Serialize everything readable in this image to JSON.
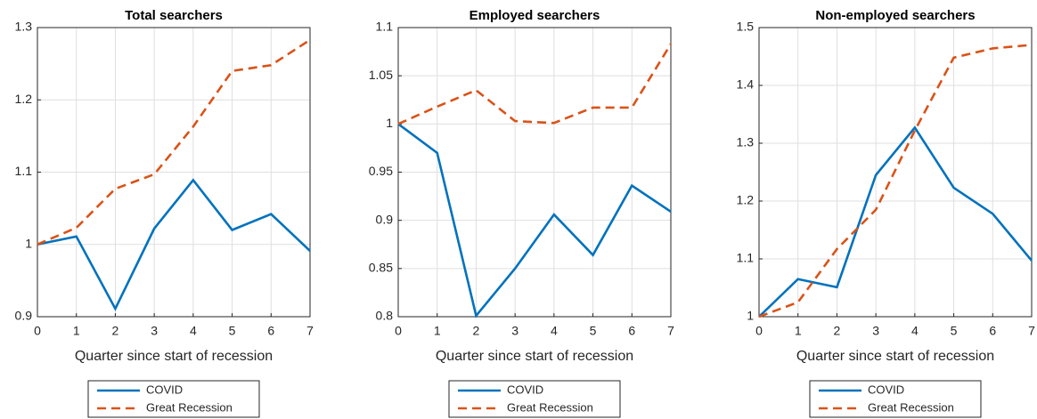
{
  "chart_data": [
    {
      "type": "line",
      "title": "Total searchers",
      "xlabel": "Quarter since start of recession",
      "x": [
        0,
        1,
        2,
        3,
        4,
        5,
        6,
        7
      ],
      "xlim": [
        0,
        7
      ],
      "xticks": [
        0,
        1,
        2,
        3,
        4,
        5,
        6,
        7
      ],
      "ylim": [
        0.9,
        1.3
      ],
      "yticks": [
        0.9,
        1,
        1.1,
        1.2,
        1.3
      ],
      "grid": true,
      "series": [
        {
          "name": "COVID",
          "color": "#0072bd",
          "dash": false,
          "values": [
            1.0,
            1.011,
            0.911,
            1.022,
            1.089,
            1.02,
            1.042,
            0.991
          ]
        },
        {
          "name": "Great Recession",
          "color": "#d95319",
          "dash": true,
          "values": [
            1.0,
            1.023,
            1.077,
            1.097,
            1.163,
            1.24,
            1.248,
            1.283
          ]
        }
      ]
    },
    {
      "type": "line",
      "title": "Employed searchers",
      "xlabel": "Quarter since start of recession",
      "x": [
        0,
        1,
        2,
        3,
        4,
        5,
        6,
        7
      ],
      "xlim": [
        0,
        7
      ],
      "xticks": [
        0,
        1,
        2,
        3,
        4,
        5,
        6,
        7
      ],
      "ylim": [
        0.8,
        1.1
      ],
      "yticks": [
        0.8,
        0.85,
        0.9,
        0.95,
        1,
        1.05,
        1.1
      ],
      "grid": true,
      "series": [
        {
          "name": "COVID",
          "color": "#0072bd",
          "dash": false,
          "values": [
            1.0,
            0.97,
            0.801,
            0.85,
            0.906,
            0.864,
            0.936,
            0.909
          ]
        },
        {
          "name": "Great Recession",
          "color": "#d95319",
          "dash": true,
          "values": [
            1.0,
            1.018,
            1.035,
            1.003,
            1.001,
            1.017,
            1.017,
            1.083
          ]
        }
      ]
    },
    {
      "type": "line",
      "title": "Non-employed searchers",
      "xlabel": "Quarter since start of recession",
      "x": [
        0,
        1,
        2,
        3,
        4,
        5,
        6,
        7
      ],
      "xlim": [
        0,
        7
      ],
      "xticks": [
        0,
        1,
        2,
        3,
        4,
        5,
        6,
        7
      ],
      "ylim": [
        1,
        1.5
      ],
      "yticks": [
        1,
        1.1,
        1.2,
        1.3,
        1.4,
        1.5
      ],
      "grid": true,
      "series": [
        {
          "name": "COVID",
          "color": "#0072bd",
          "dash": false,
          "values": [
            1.0,
            1.065,
            1.051,
            1.245,
            1.327,
            1.223,
            1.178,
            1.097
          ]
        },
        {
          "name": "Great Recession",
          "color": "#d95319",
          "dash": true,
          "values": [
            1.0,
            1.025,
            1.117,
            1.185,
            1.322,
            1.448,
            1.464,
            1.47
          ]
        }
      ]
    }
  ]
}
